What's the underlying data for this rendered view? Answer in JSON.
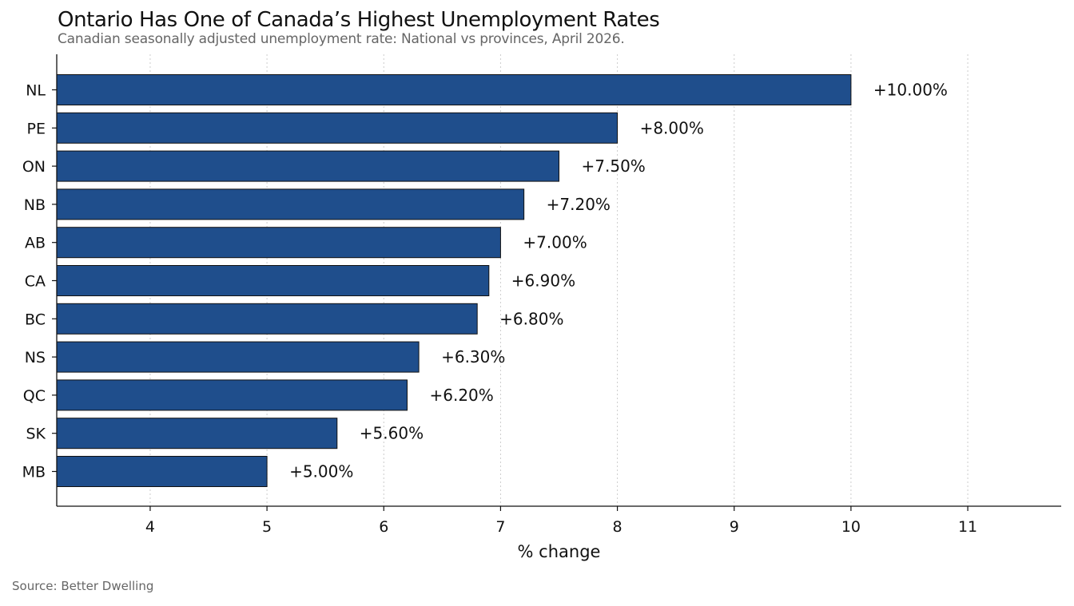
{
  "title": "Ontario Has One of Canada’s Highest Unemployment Rates",
  "subtitle": "Canadian seasonally adjusted unemployment rate: National vs provinces, April 2026.",
  "source": "Source: Better Dwelling",
  "colors": {
    "bar": "#1f4e8c",
    "bar_edge": "#111111",
    "grid": "#cccccc",
    "axis": "#111111"
  },
  "chart_data": {
    "type": "bar",
    "orientation": "horizontal",
    "categories": [
      "NL",
      "PE",
      "ON",
      "NB",
      "AB",
      "CA",
      "BC",
      "NS",
      "QC",
      "SK",
      "MB"
    ],
    "values": [
      10.0,
      8.0,
      7.5,
      7.2,
      7.0,
      6.9,
      6.8,
      6.3,
      6.2,
      5.6,
      5.0
    ],
    "data_labels": [
      "+10.00%",
      "+8.00%",
      "+7.50%",
      "+7.20%",
      "+7.00%",
      "+6.90%",
      "+6.80%",
      "+6.30%",
      "+6.20%",
      "+5.60%",
      "+5.00%"
    ],
    "xlabel": "% change",
    "xlim": [
      3.2,
      11.8
    ],
    "xticks": [
      4,
      5,
      6,
      7,
      8,
      9,
      10,
      11
    ],
    "grid": "vertical dotted"
  }
}
